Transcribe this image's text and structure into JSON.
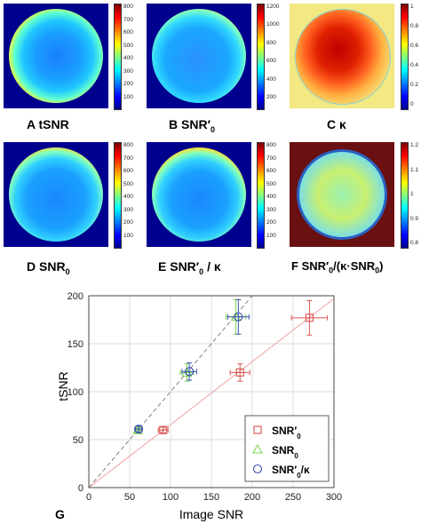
{
  "panels": {
    "A": {
      "letter": "A",
      "name": "tSNR",
      "ticks": [
        "800",
        "700",
        "600",
        "500",
        "400",
        "300",
        "200",
        "100"
      ]
    },
    "B": {
      "letter": "B",
      "name": "SNR′",
      "sub": "0",
      "ticks": [
        "1200",
        "1000",
        "800",
        "600",
        "400",
        "200"
      ]
    },
    "C": {
      "letter": "C",
      "name": "κ",
      "ticks": [
        "1",
        "0.8",
        "0.6",
        "0.4",
        "0.2",
        "0"
      ]
    },
    "D": {
      "letter": "D",
      "name": "SNR",
      "sub": "0",
      "ticks": [
        "800",
        "700",
        "600",
        "500",
        "400",
        "300",
        "200",
        "100"
      ]
    },
    "E": {
      "letter": "E",
      "name": "SNR′",
      "sub": "0",
      "suffix": "/ κ",
      "ticks": [
        "800",
        "700",
        "600",
        "500",
        "400",
        "300",
        "200",
        "100"
      ]
    },
    "F": {
      "letter": "F",
      "name": "SNR′",
      "sub": "0",
      "suffix": "/(κ·SNR",
      "sub2": "0",
      "suffix2": ")",
      "ticks": [
        "1.2",
        "1.1",
        "1",
        "0.9",
        "0.8"
      ]
    }
  },
  "colors": {
    "snr0p": "#d9534f",
    "snr0": "#7ed957",
    "ratio": "#3a4fb0",
    "dark_blue": "#00008f"
  },
  "chart_data": {
    "type": "scatter",
    "panel_letter": "G",
    "xlabel": "Image SNR",
    "ylabel": "tSNR",
    "xlim": [
      0,
      300
    ],
    "ylim": [
      0,
      200
    ],
    "xticks": [
      "0",
      "50",
      "100",
      "150",
      "200",
      "250",
      "300"
    ],
    "yticks": [
      "0",
      "50",
      "100",
      "150",
      "200"
    ],
    "grid": true,
    "legend_position": "bottom-right",
    "series": [
      {
        "name": "SNR′",
        "name_sub": "0",
        "marker": "square",
        "color": "#d9534f",
        "points": [
          {
            "x": 91,
            "y": 60,
            "xerr": 6,
            "yerr": 3
          },
          {
            "x": 185,
            "y": 120,
            "xerr": 12,
            "yerr": 9
          },
          {
            "x": 270,
            "y": 177,
            "xerr": 22,
            "yerr": 18
          }
        ],
        "fit_line": {
          "x": [
            0,
            300
          ],
          "y": [
            0,
            197
          ]
        }
      },
      {
        "name": "SNR",
        "name_sub": "0",
        "marker": "triangle",
        "color": "#7ed957",
        "points": [
          {
            "x": 60,
            "y": 60,
            "xerr": 4,
            "yerr": 3
          },
          {
            "x": 120,
            "y": 120,
            "xerr": 8,
            "yerr": 9
          },
          {
            "x": 180,
            "y": 178,
            "xerr": 12,
            "yerr": 18
          }
        ]
      },
      {
        "name": "SNR′",
        "name_sub": "0",
        "name_suffix": "/κ",
        "marker": "circle",
        "color": "#3a4fb0",
        "points": [
          {
            "x": 61,
            "y": 61,
            "xerr": 4,
            "yerr": 3
          },
          {
            "x": 123,
            "y": 121,
            "xerr": 9,
            "yerr": 9
          },
          {
            "x": 183,
            "y": 178,
            "xerr": 13,
            "yerr": 18
          }
        ]
      }
    ],
    "identity_line": {
      "x": [
        0,
        200
      ],
      "y": [
        0,
        200
      ]
    }
  }
}
